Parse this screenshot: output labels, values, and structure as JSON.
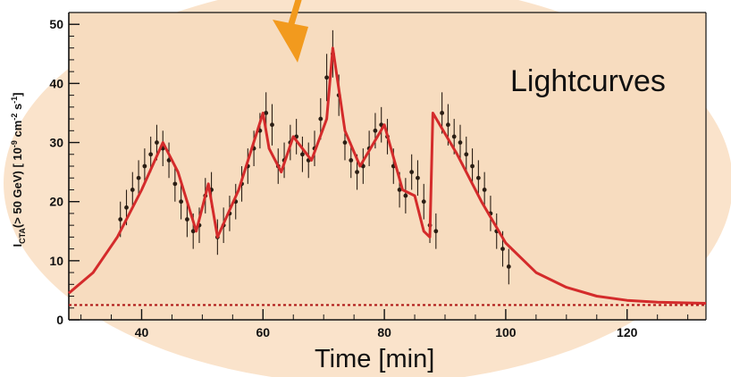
{
  "colors": {
    "background_ellipse": "#fae3cb",
    "plot_panel": "#f7dcbf",
    "axis": "#111111",
    "data_points": "#2a1e14",
    "model_curve": "#d42b2b",
    "baseline": "#b01818",
    "arrow": "#f29a1e"
  },
  "annotations": {
    "lightcurves": "Lightcurves",
    "time_axis": "Time [min]"
  },
  "icons": {
    "pointer": "down-arrow-icon"
  },
  "chart_data": {
    "type": "scatter",
    "title": "",
    "xlabel": "Time [min]",
    "ylabel": "I_CTA(> 50 GeV) [ 10^-9 cm^-2 s^-1 ]",
    "ylabel_parts": {
      "main": "I",
      "sub": "CTA",
      "rest": "(> 50 GeV) [ 10",
      "exp1": "-9",
      "mid": " cm",
      "exp2": "-2",
      "mid2": " s",
      "exp3": "-1",
      "tail": "]"
    },
    "xlim": [
      28,
      133
    ],
    "ylim": [
      0,
      52
    ],
    "xticks": [
      40,
      60,
      80,
      100,
      120
    ],
    "yticks": [
      0,
      10,
      20,
      30,
      40,
      50
    ],
    "grid": false,
    "series": [
      {
        "type": "scatter_with_errors",
        "x": [
          36.5,
          37.5,
          38.5,
          39.5,
          40.5,
          41.5,
          42.5,
          43.5,
          44.5,
          45.5,
          46.5,
          47.5,
          48.5,
          49.5,
          50.5,
          51.5,
          52.5,
          53.5,
          54.5,
          55.5,
          56.5,
          57.5,
          58.5,
          59.5,
          60.5,
          61.5,
          62.5,
          63.5,
          64.5,
          65.5,
          66.5,
          67.5,
          68.5,
          69.5,
          70.5,
          71.5,
          72.5,
          73.5,
          74.5,
          75.5,
          76.5,
          77.5,
          78.5,
          79.5,
          80.5,
          81.5,
          82.5,
          83.5,
          84.5,
          85.5,
          86.5,
          87.5,
          88.5,
          89.5,
          90.5,
          91.5,
          92.5,
          93.5,
          94.5,
          95.5,
          96.5,
          97.5,
          98.5,
          99.5,
          100.5
        ],
        "y": [
          17,
          19,
          22,
          24,
          26,
          28,
          30,
          29,
          27,
          23,
          20,
          17,
          15,
          16,
          21,
          22,
          14,
          16,
          18,
          20,
          23,
          26,
          29,
          32,
          35,
          33,
          26,
          27,
          30,
          31,
          28,
          27,
          29,
          34,
          41,
          45,
          38,
          30,
          27,
          25,
          26,
          29,
          32,
          33,
          31,
          26,
          22,
          21,
          25,
          24,
          20,
          16,
          15,
          35,
          33,
          31,
          30,
          28,
          26,
          24,
          22,
          18,
          15,
          12,
          9
        ],
        "yerr": [
          3,
          3,
          3,
          3,
          3,
          3,
          3,
          3,
          3,
          3,
          3,
          3,
          3,
          3,
          3,
          3,
          3,
          3,
          3,
          3,
          3,
          3,
          3,
          3,
          3.5,
          3.5,
          3,
          3,
          3,
          3,
          3,
          3,
          3,
          3.5,
          4,
          4,
          3.5,
          3,
          3,
          3,
          3,
          3,
          3,
          3,
          3,
          3,
          3,
          3,
          3,
          3,
          3,
          3,
          3,
          3.5,
          3.5,
          3,
          3,
          3,
          3,
          3,
          3,
          3,
          3,
          3,
          3
        ]
      },
      {
        "type": "line",
        "x": [
          28,
          32,
          36,
          40,
          43.5,
          46,
          49,
          51,
          52.5,
          56,
          60,
          61,
          63,
          65,
          68,
          70.5,
          71.5,
          73.5,
          76,
          80,
          83,
          85,
          86.5,
          87.5,
          88,
          92,
          96,
          100,
          105,
          110,
          115,
          120,
          125,
          133
        ],
        "y": [
          4.5,
          8,
          14,
          22,
          30,
          25,
          15,
          23,
          14,
          22,
          35,
          29,
          25,
          31,
          27,
          34,
          46,
          32,
          26,
          33,
          22,
          21,
          15,
          14,
          35,
          28,
          20,
          13,
          8,
          5.5,
          4,
          3.3,
          3.0,
          2.8
        ]
      },
      {
        "type": "baseline",
        "y": 2.5
      }
    ]
  }
}
